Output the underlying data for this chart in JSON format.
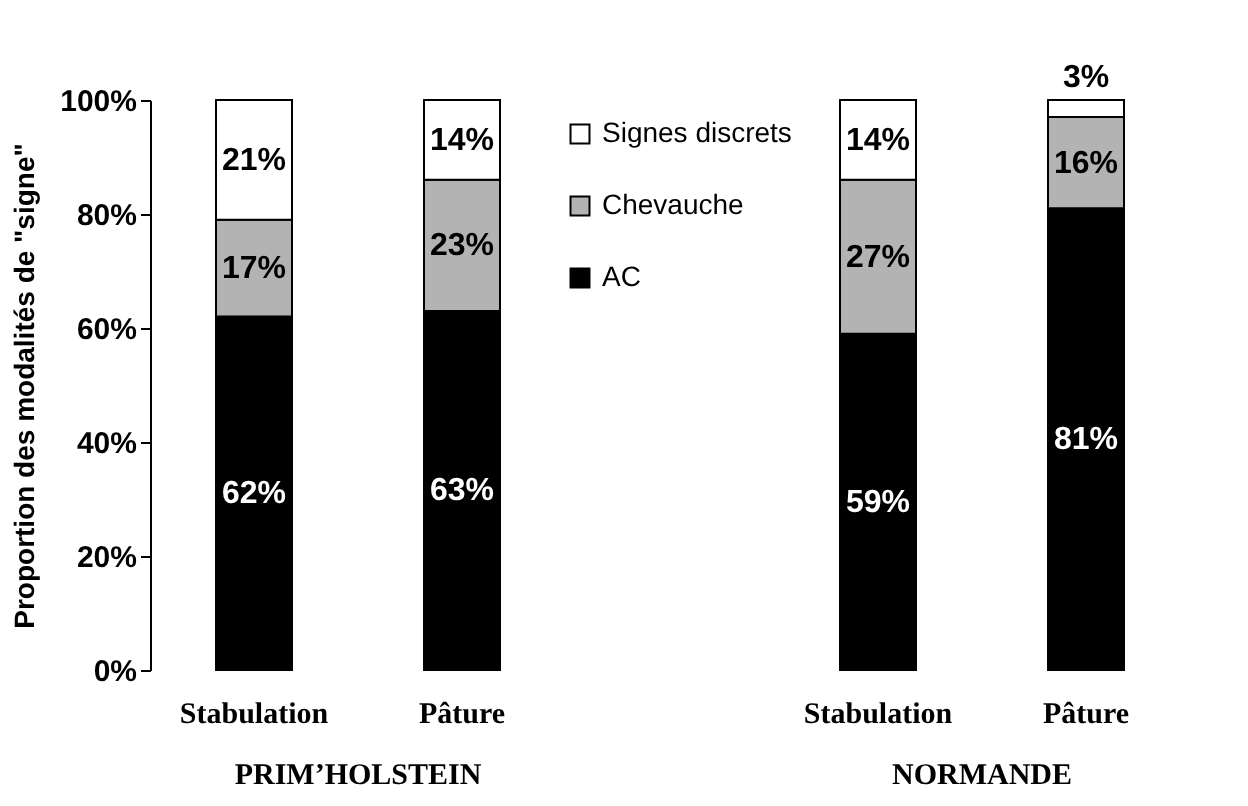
{
  "chart_data": {
    "type": "bar",
    "stacked": true,
    "ylabel": "Proportion des modalités de \"signe\"",
    "categories": [
      "Stabulation",
      "Pâture",
      null,
      "Stabulation",
      "Pâture"
    ],
    "series": [
      {
        "name": "AC",
        "color": "#000000",
        "values": [
          62,
          63,
          null,
          59,
          81
        ]
      },
      {
        "name": "Chevauche",
        "color": "#b3b3b3",
        "values": [
          17,
          23,
          null,
          27,
          16
        ]
      },
      {
        "name": "Signes discrets",
        "color": "#ffffff",
        "values": [
          21,
          14,
          null,
          14,
          3
        ]
      }
    ],
    "ylim": [
      0,
      100
    ],
    "yticks": [
      {
        "value": 0,
        "label": "0%"
      },
      {
        "value": 20,
        "label": "20%"
      },
      {
        "value": 40,
        "label": "40%"
      },
      {
        "value": 60,
        "label": "60%"
      },
      {
        "value": 80,
        "label": "80%"
      },
      {
        "value": 100,
        "label": "100%"
      }
    ],
    "value_labels": [
      [
        "62%",
        "63%",
        null,
        "59%",
        "81%"
      ],
      [
        "17%",
        "23%",
        null,
        "27%",
        "16%"
      ],
      [
        "21%",
        "14%",
        null,
        "14%",
        "3%"
      ]
    ],
    "annotations": [
      "PRIM’HOLSTEIN",
      "NORMANDE"
    ],
    "legend": "top",
    "grid": false
  }
}
